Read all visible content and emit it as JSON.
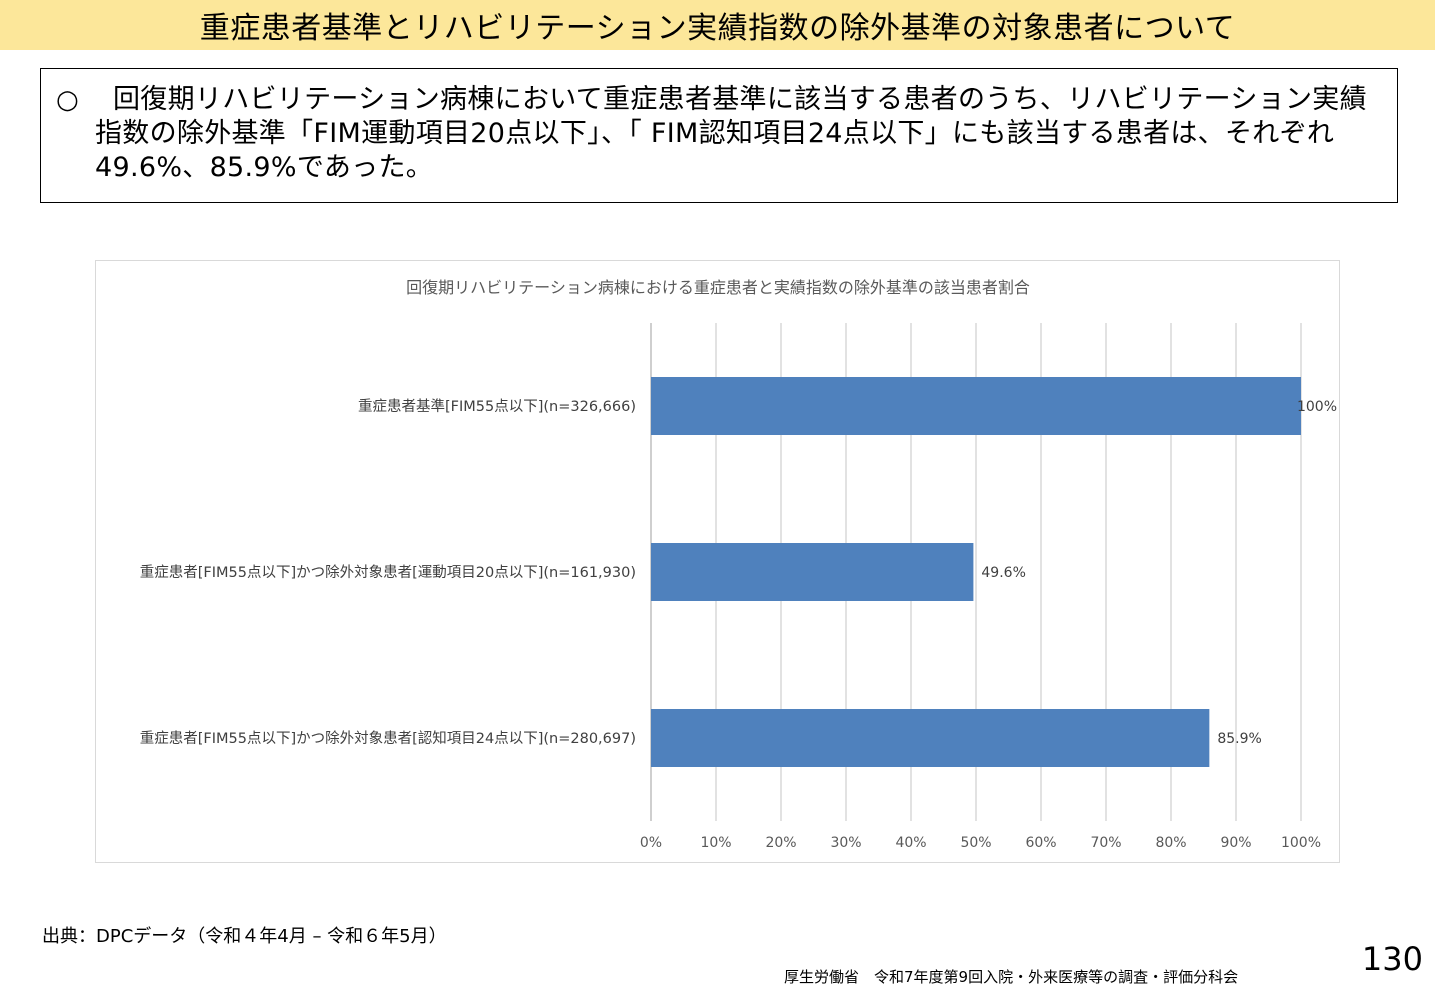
{
  "header": {
    "title": "重症患者基準とリハビリテーション実績指数の除外基準の対象患者について"
  },
  "summary": {
    "bullet": "○",
    "text": "回復期リハビリテーション病棟において重症患者基準に該当する患者のうち、リハビリテーション実績指数の除外基準「FIM運動項目20点以下」、「 FIM認知項目24点以下」にも該当する患者は、それぞれ49.6%、85.9%であった。"
  },
  "chart_data": {
    "type": "bar",
    "orientation": "horizontal",
    "title": "回復期リハビリテーション病棟における重症患者と実績指数の除外基準の該当患者割合",
    "categories": [
      "重症患者基準[FIM55点以下](n=326,666)",
      "重症患者[FIM55点以下]かつ除外対象患者[運動項目20点以下](n=161,930)",
      "重症患者[FIM55点以下]かつ除外対象患者[認知項目24点以下](n=280,697)"
    ],
    "values": [
      100,
      49.6,
      85.9
    ],
    "data_labels": [
      "100%",
      "49.6%",
      "85.9%"
    ],
    "xlim": [
      0,
      100
    ],
    "x_ticks": [
      "0%",
      "10%",
      "20%",
      "30%",
      "40%",
      "50%",
      "60%",
      "70%",
      "80%",
      "90%",
      "100%"
    ],
    "grid": "vertical",
    "bar_color": "#4f81bd",
    "grid_color": "#d9d9d9"
  },
  "footer": {
    "source": "出典：DPCデータ（令和４年4月 – 令和６年5月）",
    "credit": "厚生労働省　令和7年度第9回入院・外来医療等の調査・評価分科会",
    "page_number": "130"
  }
}
